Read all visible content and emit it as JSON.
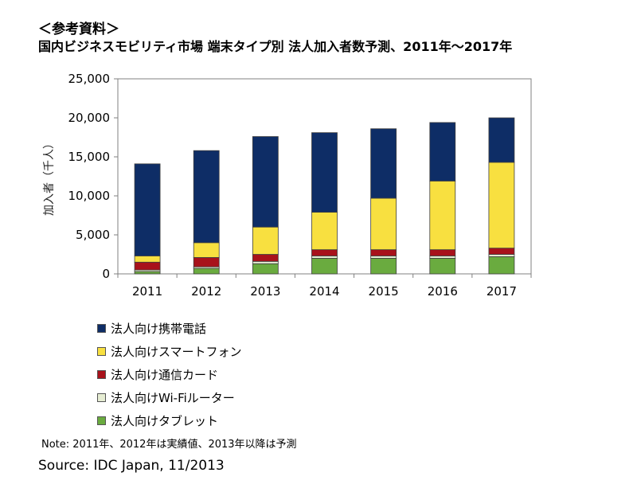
{
  "header": {
    "label": "＜参考資料＞",
    "title": "国内ビジネスモビリティ市場 端末タイプ別 法人加入者数予測、2011年～2017年"
  },
  "chart_data": {
    "type": "bar",
    "stacked": true,
    "categories": [
      "2011",
      "2012",
      "2013",
      "2014",
      "2015",
      "2016",
      "2017"
    ],
    "series": [
      {
        "name": "法人向けタブレット",
        "color": "#6aab3f",
        "values": [
          300,
          700,
          1300,
          2000,
          2000,
          2000,
          2200
        ]
      },
      {
        "name": "法人向けWi-Fiルーター",
        "color": "#e6edd3",
        "values": [
          200,
          200,
          300,
          300,
          300,
          300,
          300
        ]
      },
      {
        "name": "法人向け通信カード",
        "color": "#a8121b",
        "values": [
          1000,
          1200,
          900,
          800,
          800,
          800,
          800
        ]
      },
      {
        "name": "法人向けスマートフォン",
        "color": "#f8e040",
        "values": [
          800,
          1900,
          3500,
          4800,
          6600,
          8800,
          11000
        ]
      },
      {
        "name": "法人向け携帯電話",
        "color": "#0e2d66",
        "values": [
          11800,
          11800,
          11600,
          10200,
          8900,
          7500,
          5700
        ]
      }
    ],
    "legend_order": [
      "法人向け携帯電話",
      "法人向けスマートフォン",
      "法人向け通信カード",
      "法人向けWi-Fiルーター",
      "法人向けタブレット"
    ],
    "ylabel": "加入者（千人）",
    "xlabel": "",
    "ylim": [
      0,
      25000
    ],
    "yticks": [
      0,
      5000,
      10000,
      15000,
      20000,
      25000
    ],
    "ytick_labels": [
      "0",
      "5,000",
      "10,000",
      "15,000",
      "20,000",
      "25,000"
    ],
    "grid": false,
    "legend_position": "bottom"
  },
  "footer": {
    "note": "Note: 2011年、2012年は実績値、2013年以降は予測",
    "source": "Source: IDC Japan, 11/2013"
  }
}
